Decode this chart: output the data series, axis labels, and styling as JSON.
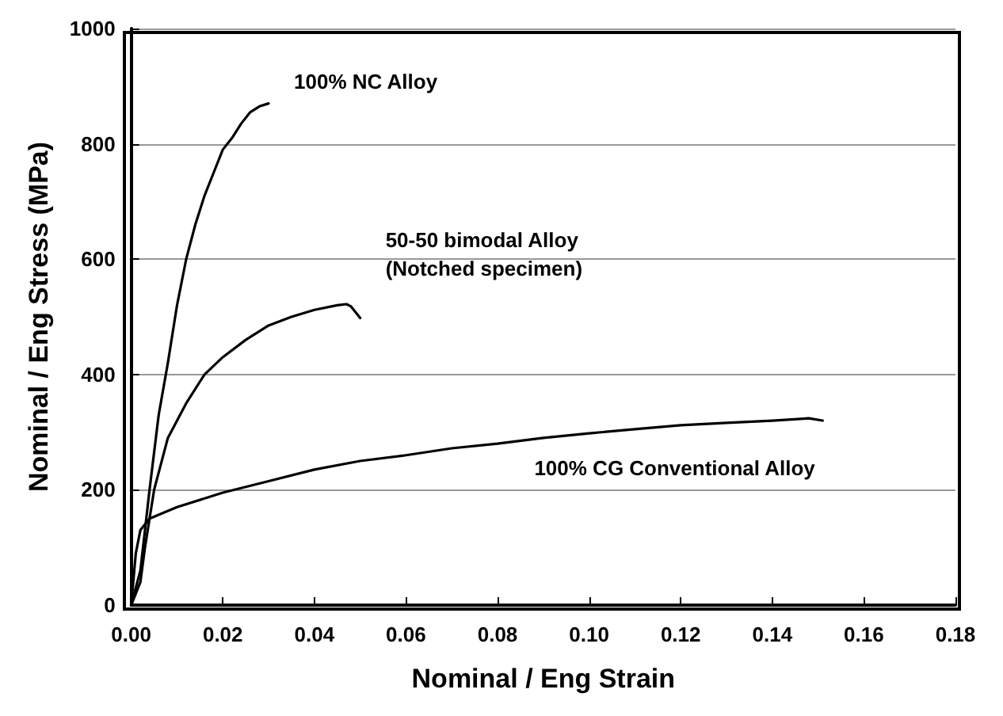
{
  "chart_data": {
    "type": "line",
    "xlabel": "Nominal / Eng Strain",
    "ylabel": "Nominal / Eng Stress (MPa)",
    "xlim": [
      0,
      0.18
    ],
    "xticks": [
      {
        "value": 0,
        "label": "0.00"
      },
      {
        "value": 0.02,
        "label": "0.02"
      },
      {
        "value": 0.04,
        "label": "0.04"
      },
      {
        "value": 0.06,
        "label": "0.06"
      },
      {
        "value": 0.08,
        "label": "0.08"
      },
      {
        "value": 0.1,
        "label": "0.10"
      },
      {
        "value": 0.12,
        "label": "0.12"
      },
      {
        "value": 0.14,
        "label": "0.14"
      },
      {
        "value": 0.16,
        "label": "0.16"
      },
      {
        "value": 0.18,
        "label": "0.18"
      }
    ],
    "ylim": [
      0,
      1000
    ],
    "yticks": [
      0,
      200,
      400,
      600,
      800,
      1000
    ],
    "grid": "y",
    "legend": false,
    "marker": "none",
    "line_style": "solid",
    "series": [
      {
        "name": "100% NC Alloy",
        "color": "#000000",
        "x": [
          0,
          0.002,
          0.004,
          0.006,
          0.008,
          0.01,
          0.012,
          0.014,
          0.016,
          0.018,
          0.02,
          0.022,
          0.024,
          0.026,
          0.028,
          0.03
        ],
        "values": [
          0,
          60,
          200,
          330,
          420,
          520,
          600,
          660,
          710,
          750,
          790,
          810,
          835,
          855,
          865,
          870
        ]
      },
      {
        "name": "50-50 bimodal Alloy (Notched specimen)",
        "color": "#000000",
        "x": [
          0,
          0.002,
          0.003,
          0.005,
          0.008,
          0.012,
          0.016,
          0.02,
          0.025,
          0.03,
          0.035,
          0.04,
          0.045,
          0.047,
          0.048,
          0.05
        ],
        "values": [
          0,
          40,
          100,
          200,
          290,
          350,
          400,
          430,
          460,
          485,
          500,
          512,
          520,
          522,
          518,
          498
        ]
      },
      {
        "name": "100% CG Conventional Alloy",
        "color": "#000000",
        "x": [
          0,
          0.001,
          0.002,
          0.004,
          0.01,
          0.02,
          0.03,
          0.04,
          0.05,
          0.06,
          0.07,
          0.08,
          0.09,
          0.1,
          0.11,
          0.12,
          0.13,
          0.14,
          0.148,
          0.151
        ],
        "values": [
          0,
          90,
          130,
          150,
          170,
          195,
          215,
          235,
          250,
          260,
          272,
          280,
          290,
          298,
          305,
          312,
          316,
          320,
          324,
          320
        ]
      }
    ]
  }
}
